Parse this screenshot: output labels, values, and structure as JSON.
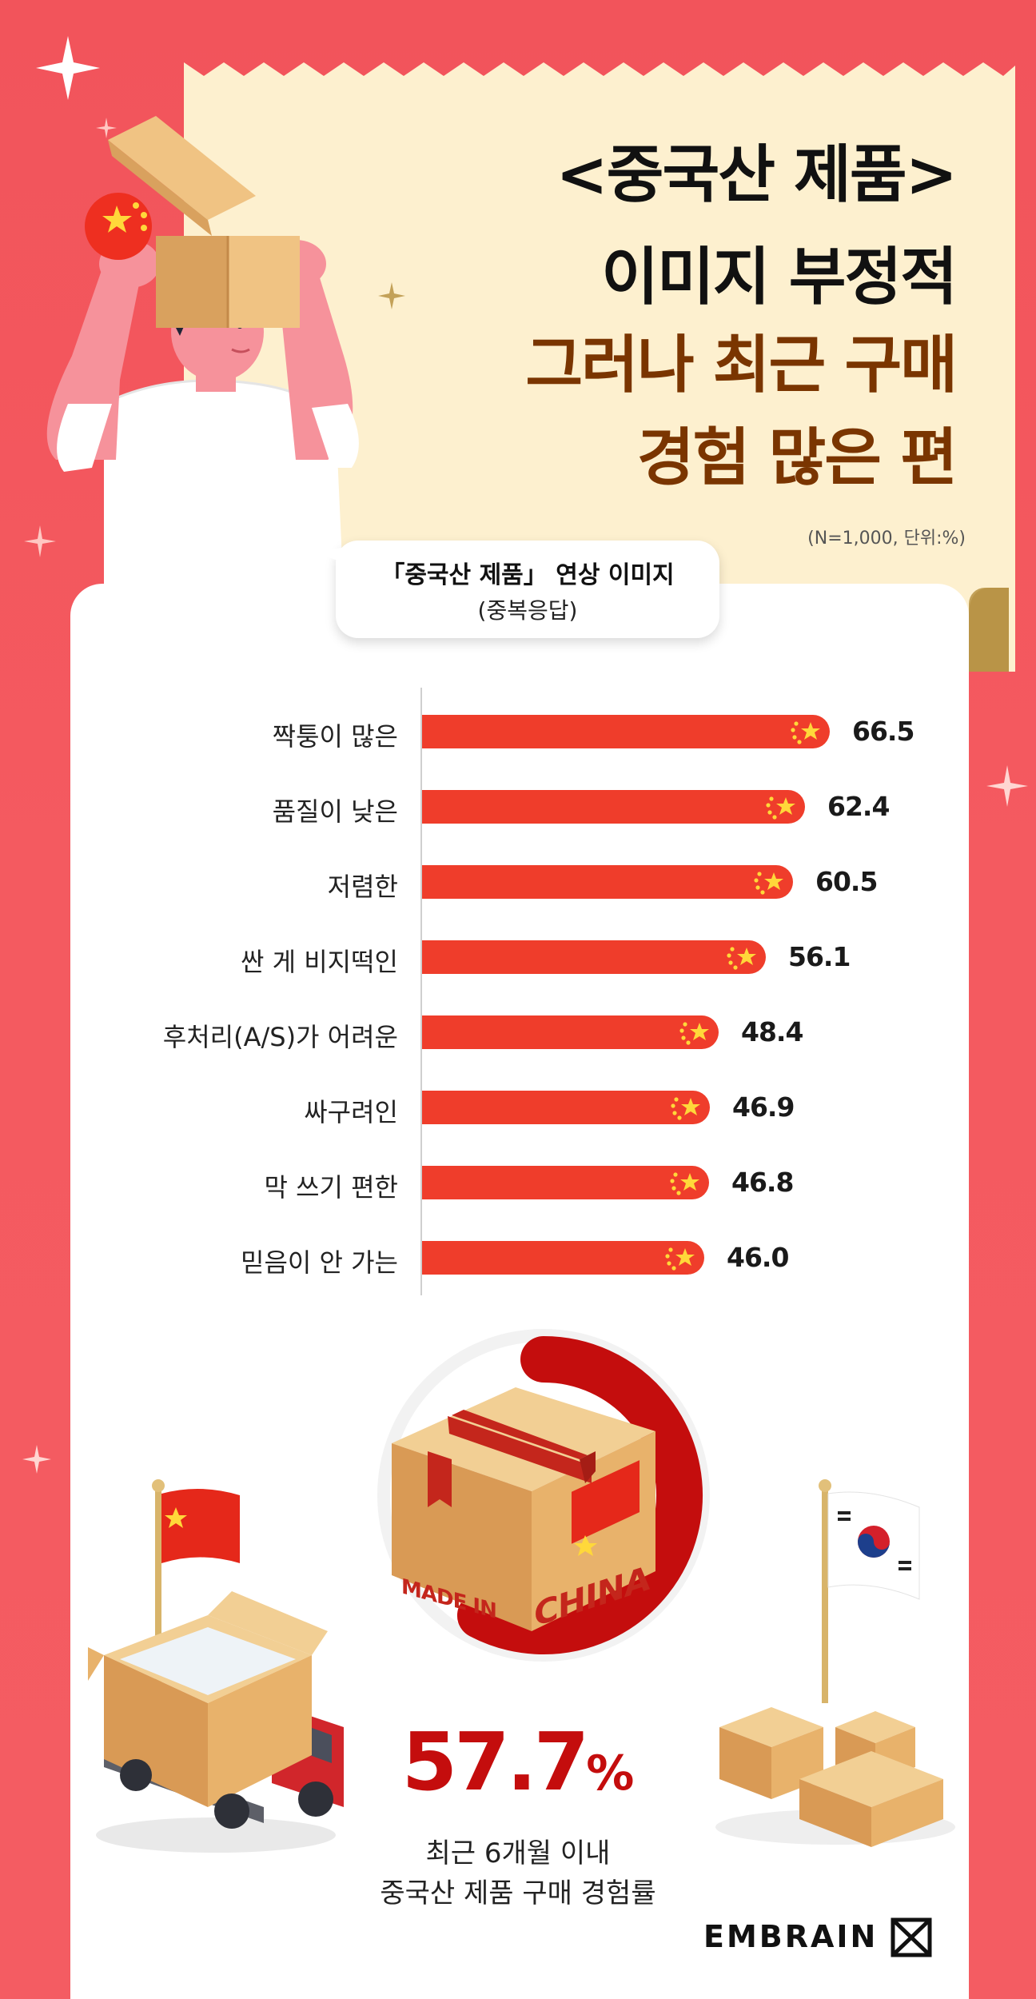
{
  "title": {
    "line1": "<중국산 제품>",
    "line2": "이미지 부정적",
    "line3": "그러나 최근 구매",
    "line4": "경험 많은 편"
  },
  "note": "(N=1,000, 단위:%)",
  "bubble": {
    "line1": "「중국산 제품」 연상 이미지",
    "line2": "(중복응답)"
  },
  "chart_data": [
    {
      "type": "bar",
      "orientation": "horizontal",
      "title": "「중국산 제품」 연상 이미지 (중복응답)",
      "categories": [
        "짝퉁이 많은",
        "품질이 낮은",
        "저렴한",
        "싼 게 비지떡인",
        "후처리(A/S)가 어려운",
        "싸구려인",
        "막 쓰기 편한",
        "믿음이 안 가는"
      ],
      "values": [
        66.5,
        62.4,
        60.5,
        56.1,
        48.4,
        46.9,
        46.8,
        46.0
      ],
      "value_labels": [
        "66.5",
        "62.4",
        "60.5",
        "56.1",
        "48.4",
        "46.9",
        "46.8",
        "46.0"
      ],
      "xlim": [
        0,
        70
      ],
      "bar_color": "#ef3d2b"
    },
    {
      "type": "donut",
      "value": 57.7,
      "value_text": "57.7",
      "unit": "%",
      "caption_line1": "최근 6개월 이내",
      "caption_line2": "중국산 제품 구매 경험률",
      "color": "#c40d0d"
    }
  ],
  "box_text": {
    "made_in": "MADE IN",
    "china": "CHINA"
  },
  "brand": "EMBRAIN",
  "colors": {
    "background": "#f2545b",
    "paper": "#fdf0cf",
    "title_dark": "#111111",
    "title_brown": "#7a3500",
    "bar": "#ef3d2b",
    "donut": "#c40d0d"
  }
}
